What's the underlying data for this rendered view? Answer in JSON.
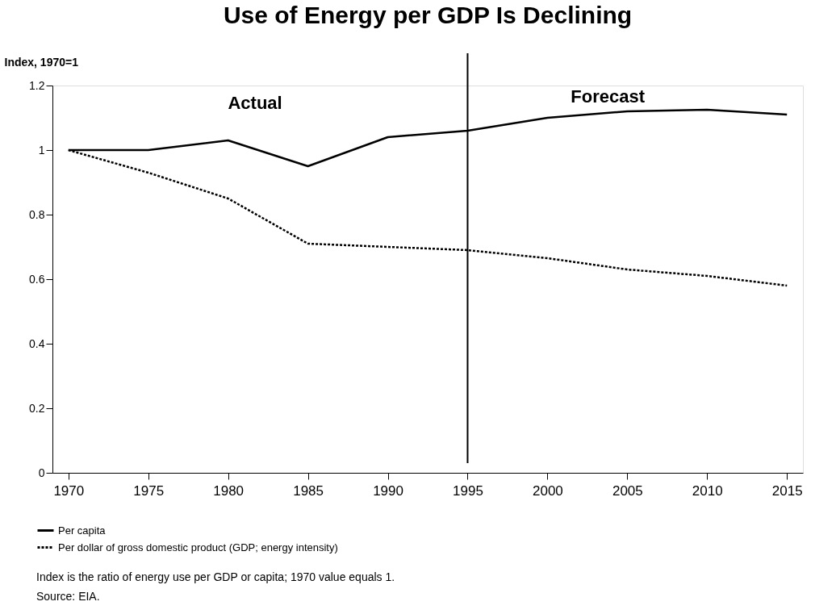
{
  "chart_data": {
    "type": "line",
    "title": "Use of Energy per GDP Is Declining",
    "ylabel": "Index, 1970=1",
    "x": [
      1970,
      1975,
      1980,
      1985,
      1990,
      1995,
      2000,
      2005,
      2010,
      2015
    ],
    "series": [
      {
        "name": "Per capita",
        "color": "#000000",
        "line_style": "solid",
        "values": [
          1.0,
          1.0,
          1.03,
          0.95,
          1.04,
          1.06,
          1.1,
          1.12,
          1.125,
          1.11
        ]
      },
      {
        "name": "Per dollar of gross domestic product (GDP; energy intensity)",
        "color": "#000000",
        "line_style": "dotted",
        "values": [
          1.0,
          0.93,
          0.85,
          0.71,
          0.7,
          0.69,
          0.665,
          0.63,
          0.61,
          0.58
        ]
      }
    ],
    "xlim": [
      1969,
      2016
    ],
    "xticks": [
      1970,
      1975,
      1980,
      1985,
      1990,
      1995,
      2000,
      2005,
      2010,
      2015
    ],
    "ylim": [
      0,
      1.2
    ],
    "yticks": [
      0,
      0.2,
      0.4,
      0.6,
      0.8,
      1,
      1.2
    ],
    "ref_lines": [
      {
        "axis": "x",
        "value": 1995,
        "label": null,
        "color": "#000000"
      }
    ],
    "annotations": [
      "Actual",
      "Forecast",
      "Index is the ratio of energy use per GDP or capita; 1970 value equals 1.",
      "Source:  EIA."
    ],
    "grid": false,
    "legend": "bottom left",
    "marker": "none"
  }
}
